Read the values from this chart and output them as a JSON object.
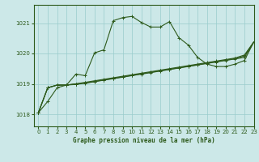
{
  "background_color": "#cce8e8",
  "grid_color": "#99cccc",
  "line_color": "#2d5a1b",
  "title": "Graphe pression niveau de la mer (hPa)",
  "xlim": [
    -0.5,
    23
  ],
  "ylim": [
    1017.6,
    1021.6
  ],
  "yticks": [
    1018,
    1019,
    1020,
    1021
  ],
  "xticks": [
    0,
    1,
    2,
    3,
    4,
    5,
    6,
    7,
    8,
    9,
    10,
    11,
    12,
    13,
    14,
    15,
    16,
    17,
    18,
    19,
    20,
    21,
    22,
    23
  ],
  "y_main": [
    1018.05,
    1018.42,
    1018.87,
    1018.96,
    1019.32,
    1019.27,
    1020.02,
    1020.12,
    1021.08,
    1021.18,
    1021.22,
    1021.02,
    1020.87,
    1020.87,
    1021.05,
    1020.52,
    1020.28,
    1019.87,
    1019.65,
    1019.57,
    1019.57,
    1019.65,
    1019.77,
    1020.38
  ],
  "y_low1": [
    1018.05,
    1018.87,
    1018.96,
    1018.96,
    1018.98,
    1019.02,
    1019.07,
    1019.12,
    1019.17,
    1019.22,
    1019.27,
    1019.32,
    1019.37,
    1019.42,
    1019.47,
    1019.52,
    1019.57,
    1019.62,
    1019.67,
    1019.72,
    1019.77,
    1019.82,
    1019.87,
    1020.38
  ],
  "y_low2": [
    1018.05,
    1018.87,
    1018.96,
    1018.96,
    1019.0,
    1019.03,
    1019.08,
    1019.13,
    1019.18,
    1019.23,
    1019.28,
    1019.33,
    1019.38,
    1019.43,
    1019.48,
    1019.53,
    1019.58,
    1019.63,
    1019.68,
    1019.73,
    1019.78,
    1019.83,
    1019.92,
    1020.38
  ],
  "y_mid": [
    1018.05,
    1018.87,
    1018.96,
    1018.96,
    1019.0,
    1019.05,
    1019.1,
    1019.15,
    1019.2,
    1019.25,
    1019.3,
    1019.35,
    1019.4,
    1019.45,
    1019.5,
    1019.55,
    1019.6,
    1019.65,
    1019.7,
    1019.75,
    1019.8,
    1019.85,
    1019.95,
    1020.38
  ],
  "marker": "+",
  "markersize": 3,
  "linewidth": 0.8
}
